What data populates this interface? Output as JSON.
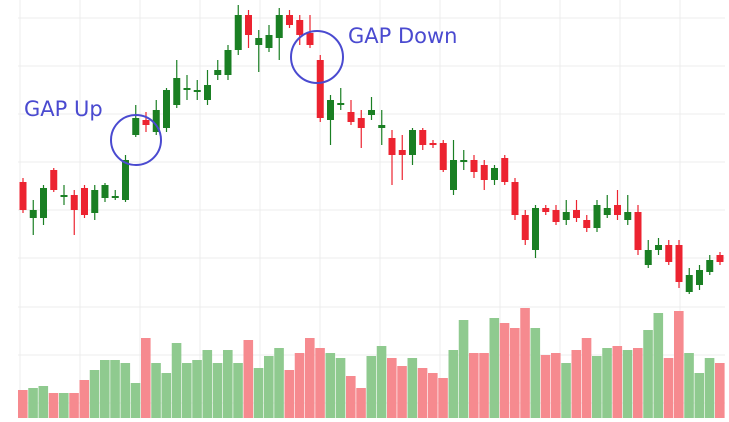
{
  "chart_data": [
    {
      "type": "candlestick",
      "open": [
        118,
        82,
        82,
        130,
        103,
        105,
        112,
        87,
        102,
        102,
        100,
        165,
        180,
        168,
        172,
        195,
        210,
        208,
        200,
        225,
        225,
        250,
        285,
        255,
        252,
        262,
        285,
        280,
        267,
        240,
        180,
        195,
        188,
        182,
        185,
        172,
        162,
        150,
        145,
        170,
        157,
        157,
        110,
        138,
        140,
        135,
        120,
        142,
        118,
        85,
        50,
        92,
        90,
        80,
        90,
        80,
        72,
        85,
        95,
        80,
        88,
        35,
        50,
        55,
        55,
        8,
        15,
        28,
        45
      ],
      "high": [
        122,
        100,
        115,
        132,
        115,
        110,
        115,
        115,
        117,
        110,
        145,
        195,
        188,
        200,
        212,
        240,
        225,
        220,
        230,
        240,
        255,
        295,
        290,
        270,
        275,
        292,
        290,
        285,
        285,
        245,
        205,
        212,
        200,
        190,
        203,
        190,
        170,
        165,
        172,
        172,
        160,
        160,
        160,
        150,
        145,
        140,
        135,
        145,
        122,
        90,
        95,
        95,
        95,
        100,
        100,
        85,
        100,
        105,
        110,
        105,
        95,
        60,
        62,
        60,
        60,
        32,
        35,
        45,
        48
      ],
      "low": [
        87,
        65,
        75,
        108,
        95,
        65,
        82,
        80,
        98,
        100,
        98,
        163,
        168,
        165,
        168,
        192,
        200,
        200,
        195,
        220,
        220,
        245,
        252,
        228,
        248,
        240,
        272,
        255,
        252,
        178,
        155,
        190,
        175,
        152,
        180,
        155,
        115,
        120,
        135,
        150,
        152,
        128,
        105,
        130,
        122,
        110,
        115,
        115,
        80,
        55,
        42,
        85,
        75,
        75,
        78,
        68,
        68,
        82,
        80,
        75,
        45,
        32,
        45,
        35,
        12,
        6,
        10,
        25,
        35
      ],
      "close": [
        90,
        90,
        112,
        110,
        105,
        90,
        85,
        110,
        115,
        104,
        140,
        182,
        175,
        190,
        210,
        222,
        212,
        210,
        215,
        230,
        250,
        285,
        265,
        262,
        265,
        285,
        275,
        265,
        255,
        182,
        200,
        197,
        178,
        172,
        190,
        175,
        145,
        145,
        170,
        155,
        155,
        130,
        140,
        140,
        128,
        120,
        132,
        118,
        85,
        60,
        92,
        88,
        78,
        88,
        82,
        72,
        95,
        92,
        85,
        88,
        50,
        50,
        55,
        38,
        18,
        25,
        30,
        40,
        38
      ],
      "up_color": "#1a7f23",
      "down_color": "#ec2330",
      "ylim": [
        0,
        300
      ],
      "yticks": [
        42,
        90,
        138,
        186,
        234,
        282
      ],
      "grid": true,
      "annotations": [
        "GAP Up",
        "GAP Down"
      ]
    },
    {
      "type": "bar",
      "values": [
        28,
        30,
        32,
        25,
        25,
        25,
        38,
        48,
        58,
        58,
        55,
        35,
        80,
        55,
        45,
        75,
        55,
        58,
        68,
        55,
        68,
        55,
        78,
        50,
        62,
        70,
        48,
        65,
        80,
        70,
        65,
        60,
        42,
        30,
        62,
        72,
        60,
        52,
        60,
        50,
        45,
        40,
        68,
        98,
        65,
        65,
        100,
        95,
        90,
        110,
        90,
        63,
        65,
        55,
        68,
        80,
        62,
        70,
        72,
        68,
        70,
        88,
        105,
        60,
        107,
        65,
        45,
        60,
        55
      ],
      "up_color": "#8fca8f",
      "down_color": "#f68a8f",
      "ylim": [
        0,
        120
      ],
      "yticks": [
        15,
        63,
        111
      ],
      "grid": true
    }
  ]
}
